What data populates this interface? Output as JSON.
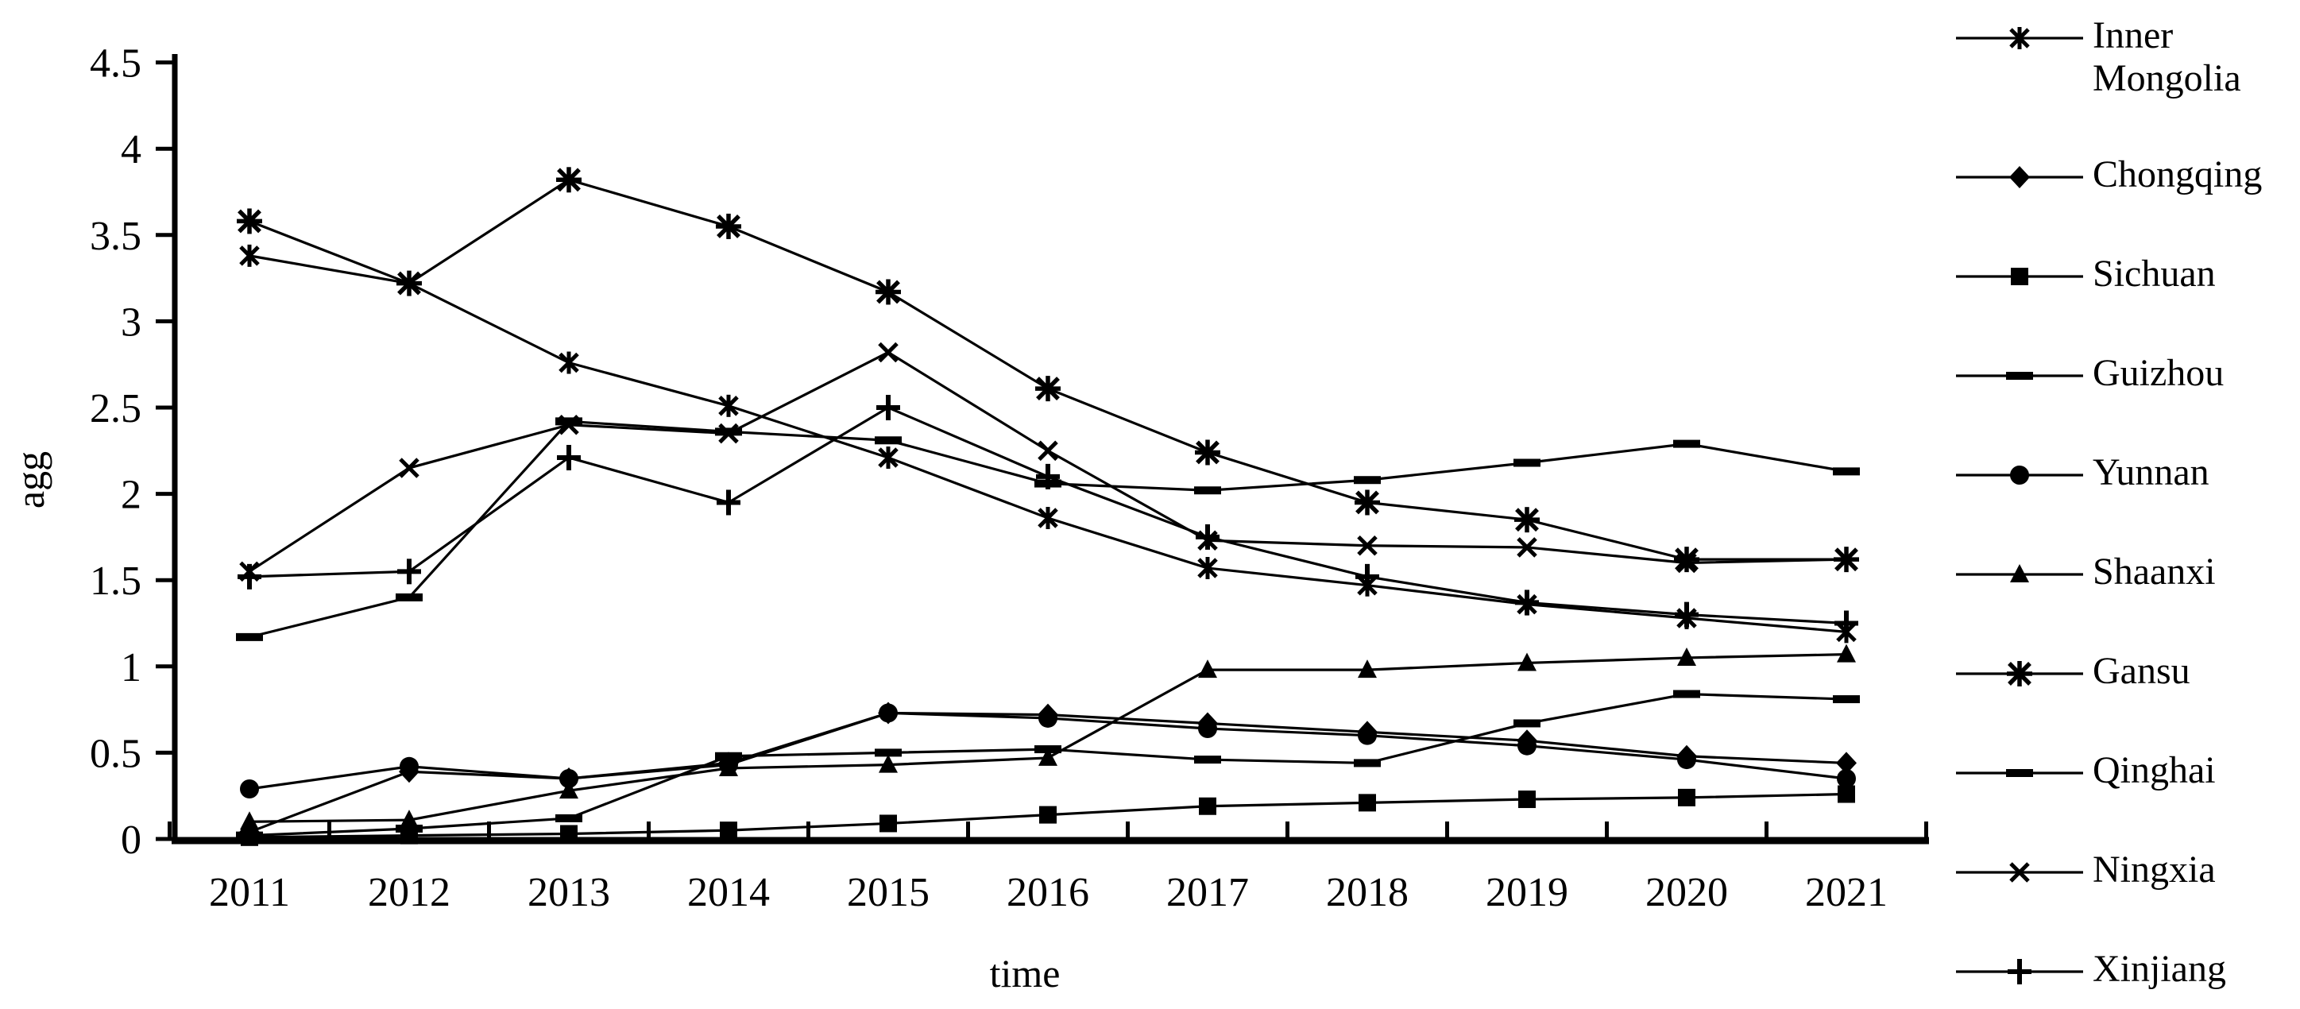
{
  "chart_data": {
    "type": "line",
    "title": "",
    "xlabel": "time",
    "ylabel": "agg",
    "x": [
      "2011",
      "2012",
      "2013",
      "2014",
      "2015",
      "2016",
      "2017",
      "2018",
      "2019",
      "2020",
      "2021"
    ],
    "ylim": [
      0,
      4.5
    ],
    "ytick_step": 0.5,
    "yticks": [
      "0",
      "0.5",
      "1",
      "1.5",
      "2",
      "2.5",
      "3",
      "3.5",
      "4",
      "4.5"
    ],
    "grid": "off",
    "legend_position": "right",
    "line_color": "#000000",
    "background_color": "#ffffff",
    "series": [
      {
        "name": "Inner Mongolia",
        "marker": "star6",
        "values": [
          3.38,
          3.22,
          2.76,
          2.51,
          2.21,
          1.86,
          1.57,
          1.47,
          1.36,
          1.28,
          1.2
        ]
      },
      {
        "name": "Chongqing",
        "marker": "diamond",
        "values": [
          0.04,
          0.39,
          0.35,
          0.44,
          0.73,
          0.72,
          0.67,
          0.62,
          0.57,
          0.48,
          0.44
        ]
      },
      {
        "name": "Sichuan",
        "marker": "square",
        "values": [
          0.01,
          0.02,
          0.03,
          0.05,
          0.09,
          0.14,
          0.19,
          0.21,
          0.23,
          0.24,
          0.26
        ]
      },
      {
        "name": "Guizhou",
        "marker": "dash",
        "values": [
          0.02,
          0.06,
          0.12,
          0.48,
          0.5,
          0.52,
          0.46,
          0.44,
          0.67,
          0.84,
          0.81
        ]
      },
      {
        "name": "Yunnan",
        "marker": "circle",
        "values": [
          0.29,
          0.42,
          0.35,
          0.43,
          0.73,
          0.7,
          0.64,
          0.6,
          0.54,
          0.46,
          0.35
        ]
      },
      {
        "name": "Shaanxi",
        "marker": "triangle",
        "values": [
          0.1,
          0.11,
          0.28,
          0.41,
          0.43,
          0.47,
          0.98,
          0.98,
          1.02,
          1.05,
          1.07
        ]
      },
      {
        "name": "Gansu",
        "marker": "star8",
        "values": [
          3.58,
          3.22,
          3.82,
          3.55,
          3.17,
          2.61,
          2.24,
          1.95,
          1.85,
          1.62,
          1.62
        ]
      },
      {
        "name": "Qinghai",
        "marker": "dash",
        "values": [
          1.17,
          1.4,
          2.42,
          2.36,
          2.31,
          2.06,
          2.02,
          2.08,
          2.18,
          2.29,
          2.13
        ]
      },
      {
        "name": "Ningxia",
        "marker": "x",
        "values": [
          1.55,
          2.15,
          2.4,
          2.35,
          2.82,
          2.25,
          1.73,
          1.7,
          1.69,
          1.6,
          1.62
        ]
      },
      {
        "name": "Xinjiang",
        "marker": "plus",
        "values": [
          1.52,
          1.55,
          2.21,
          1.95,
          2.5,
          2.1,
          1.75,
          1.52,
          1.37,
          1.3,
          1.25
        ]
      }
    ]
  }
}
